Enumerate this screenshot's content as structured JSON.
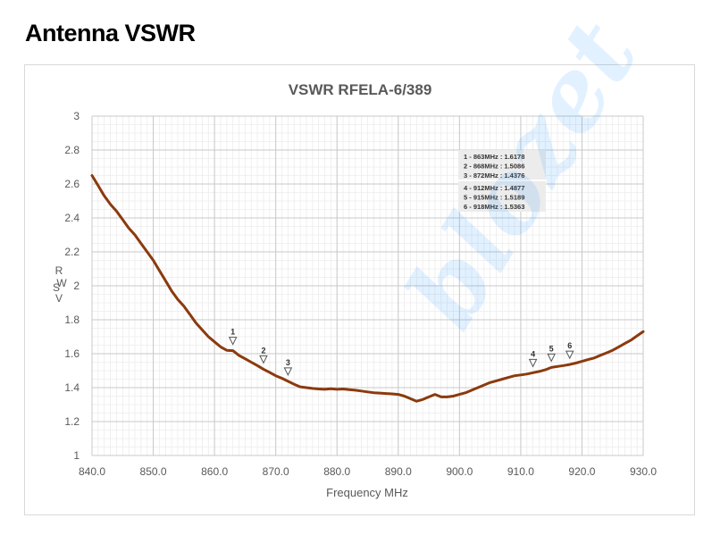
{
  "heading": "Antenna VSWR",
  "watermark_text": "blozet",
  "chart_data": {
    "type": "line",
    "title": "VSWR RFELA-6/389",
    "xlabel": "Frequency MHz",
    "ylabel": "VSWR",
    "xlim": [
      840,
      930
    ],
    "ylim": [
      1,
      3
    ],
    "x_ticks": [
      "840.0",
      "850.0",
      "860.0",
      "870.0",
      "880.0",
      "890.0",
      "900.0",
      "910.0",
      "920.0",
      "930.0"
    ],
    "y_ticks": [
      "1",
      "1.2",
      "1.4",
      "1.6",
      "1.8",
      "2",
      "2.2",
      "2.4",
      "2.6",
      "2.8",
      "3"
    ],
    "grid": true,
    "line_color": "#8b3a0e",
    "series": [
      {
        "x": [
          840,
          841,
          842,
          843,
          844,
          845,
          846,
          847,
          848,
          849,
          850,
          851,
          852,
          853,
          854,
          855,
          856,
          857,
          858,
          859,
          860,
          861,
          862,
          863,
          864,
          865,
          866,
          867,
          868,
          869,
          870,
          871,
          872,
          873,
          874,
          875,
          876,
          877,
          878,
          879,
          880,
          881,
          882,
          883,
          884,
          885,
          886,
          887,
          888,
          889,
          890,
          891,
          892,
          893,
          894,
          895,
          896,
          897,
          898,
          899,
          900,
          901,
          902,
          903,
          904,
          905,
          906,
          907,
          908,
          909,
          910,
          911,
          912,
          913,
          914,
          915,
          916,
          917,
          918,
          919,
          920,
          921,
          922,
          923,
          924,
          925,
          926,
          927,
          928,
          929,
          930
        ],
        "y": [
          2.65,
          2.59,
          2.53,
          2.48,
          2.44,
          2.39,
          2.34,
          2.3,
          2.25,
          2.2,
          2.15,
          2.09,
          2.03,
          1.97,
          1.92,
          1.88,
          1.83,
          1.78,
          1.74,
          1.7,
          1.67,
          1.64,
          1.62,
          1.6178,
          1.59,
          1.57,
          1.55,
          1.53,
          1.5086,
          1.49,
          1.47,
          1.455,
          1.4376,
          1.42,
          1.405,
          1.4,
          1.395,
          1.392,
          1.39,
          1.393,
          1.39,
          1.392,
          1.388,
          1.385,
          1.38,
          1.375,
          1.37,
          1.368,
          1.365,
          1.363,
          1.36,
          1.35,
          1.335,
          1.32,
          1.33,
          1.345,
          1.36,
          1.345,
          1.345,
          1.35,
          1.36,
          1.37,
          1.385,
          1.4,
          1.415,
          1.43,
          1.44,
          1.45,
          1.46,
          1.47,
          1.475,
          1.48,
          1.4877,
          1.495,
          1.505,
          1.5189,
          1.525,
          1.53,
          1.5363,
          1.545,
          1.555,
          1.565,
          1.575,
          1.59,
          1.605,
          1.62,
          1.64,
          1.66,
          1.68,
          1.705,
          1.73
        ]
      }
    ],
    "markers": [
      {
        "label": "1",
        "x": 863,
        "y": 1.6178
      },
      {
        "label": "2",
        "x": 868,
        "y": 1.5086
      },
      {
        "label": "3",
        "x": 872,
        "y": 1.4376
      },
      {
        "label": "4",
        "x": 912,
        "y": 1.4877
      },
      {
        "label": "5",
        "x": 915,
        "y": 1.5189
      },
      {
        "label": "6",
        "x": 918,
        "y": 1.5363
      }
    ],
    "marker_table": [
      [
        "1 - 863MHz : 1.6178",
        "2 - 868MHz : 1.5086",
        "3 - 872MHz : 1.4376"
      ],
      [
        "4 - 912MHz : 1.4877",
        "5 - 915MHz : 1.5189",
        "6 - 918MHz : 1.5363"
      ]
    ]
  }
}
